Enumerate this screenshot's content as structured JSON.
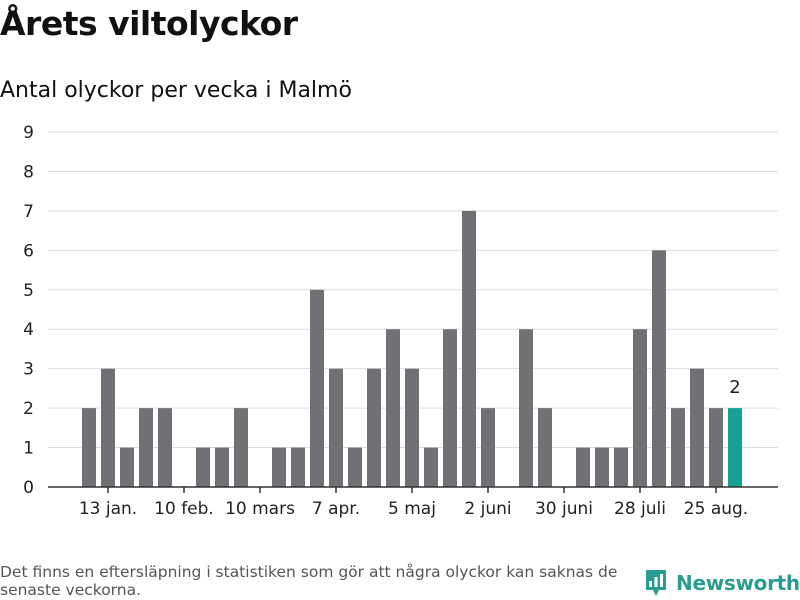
{
  "title": "Årets viltolyckor",
  "subtitle": "Antal olyckor per vecka i Malmö",
  "footnote": "Det finns en eftersläpning i statistiken som gör att några olyckor kan saknas de senaste veckorna.",
  "brand": {
    "name": "Newsworthy",
    "icon": "newsworthy-logo-icon"
  },
  "colors": {
    "bar": "#717075",
    "highlight": "#15a196",
    "grid": "#dddddd",
    "axis": "#333333",
    "brand": "#2a9d8f"
  },
  "chart_data": {
    "type": "bar",
    "ylabel": "",
    "xlabel": "",
    "ylim": [
      0,
      9
    ],
    "yticks": [
      0,
      1,
      2,
      3,
      4,
      5,
      6,
      7,
      8,
      9
    ],
    "grid": true,
    "x_tick_labels": [
      "13 jan.",
      "10 feb.",
      "10 mars",
      "7 apr.",
      "5 maj",
      "2 juni",
      "30 juni",
      "28 juli",
      "25 aug."
    ],
    "x_tick_week_index": [
      1,
      5,
      9,
      13,
      17,
      21,
      25,
      29,
      33
    ],
    "values": [
      2,
      3,
      1,
      2,
      2,
      0,
      1,
      1,
      2,
      0,
      1,
      1,
      5,
      3,
      1,
      3,
      4,
      3,
      1,
      4,
      7,
      2,
      0,
      4,
      2,
      0,
      1,
      1,
      1,
      4,
      6,
      2,
      3,
      2,
      2
    ],
    "highlight_index": 34,
    "highlight_label": "2"
  }
}
